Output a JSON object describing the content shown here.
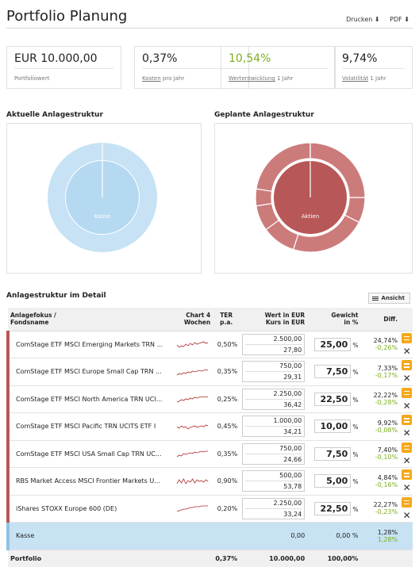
{
  "header": {
    "title": "Portfolio Planung",
    "print_label": "Drucken",
    "pdf_label": "PDF"
  },
  "kpis": [
    {
      "value": "EUR 10.000,00",
      "label": "Portfoliowert",
      "label_link": "",
      "label_rest": ""
    },
    {
      "value": "0,37%",
      "label": "",
      "label_link": "Kosten",
      "label_rest": " pro Jahr"
    },
    {
      "value": "10,54%",
      "label": "",
      "label_link": "Wertentwicklung",
      "label_rest": " 1 Jahr",
      "color": "#7cae1f"
    },
    {
      "value": "9,74%",
      "label": "",
      "label_link": "Volatilität",
      "label_rest": " 1 Jahr"
    }
  ],
  "structure": {
    "current_title": "Aktuelle Anlagestruktur",
    "planned_title": "Geplante Anlagestruktur",
    "current_label": "Kasse",
    "planned_label": "Aktien"
  },
  "detail": {
    "title": "Anlagestruktur im Detail",
    "view_button": "Ansicht",
    "columns": {
      "focus": "Anlagefokus /",
      "name": "Fondsname",
      "chart1": "Chart 4",
      "chart2": "Wochen",
      "ter1": "TER",
      "ter2": "p.a.",
      "wert1": "Wert in EUR",
      "wert2": "Kurs in EUR",
      "gewicht1": "Gewicht",
      "gewicht2": "in %",
      "diff": "Diff."
    },
    "rows": [
      {
        "name": "ComStage ETF MSCI Emerging Markets TRN ...",
        "ter": "0,50%",
        "wert": "2.500,00",
        "kurs": "27,80",
        "gewicht": "25,00",
        "diff1": "24,74%",
        "diff2": "-0,26%"
      },
      {
        "name": "ComStage ETF MSCI Europe Small Cap TRN ...",
        "ter": "0,35%",
        "wert": "750,00",
        "kurs": "29,31",
        "gewicht": "7,50",
        "diff1": "7,33%",
        "diff2": "-0,17%"
      },
      {
        "name": "ComStage ETF MSCI North America TRN UCI...",
        "ter": "0,25%",
        "wert": "2.250,00",
        "kurs": "36,42",
        "gewicht": "22,50",
        "diff1": "22,22%",
        "diff2": "-0,28%"
      },
      {
        "name": "ComStage ETF MSCI Pacific TRN UCITS ETF I",
        "ter": "0,45%",
        "wert": "1.000,00",
        "kurs": "34,21",
        "gewicht": "10,00",
        "diff1": "9,92%",
        "diff2": "-0,08%"
      },
      {
        "name": "ComStage ETF MSCI USA Small Cap TRN UC...",
        "ter": "0,35%",
        "wert": "750,00",
        "kurs": "24,66",
        "gewicht": "7,50",
        "diff1": "7,40%",
        "diff2": "-0,10%"
      },
      {
        "name": "RBS Market Access MSCI Frontier Markets U...",
        "ter": "0,90%",
        "wert": "500,00",
        "kurs": "53,78",
        "gewicht": "5,00",
        "diff1": "4,84%",
        "diff2": "-0,16%"
      },
      {
        "name": "iShares STOXX Europe 600 (DE)",
        "ter": "0,20%",
        "wert": "2.250,00",
        "kurs": "33,24",
        "gewicht": "22,50",
        "diff1": "22,27%",
        "diff2": "-0,23%"
      }
    ],
    "cash": {
      "name": "Kasse",
      "wert": "0,00",
      "gewicht": "0,00 %",
      "diff1": "1,28%",
      "diff2": "1,28%"
    },
    "footer": {
      "label": "Portfolio",
      "ter": "0,37%",
      "wert": "10.000,00",
      "gewicht": "100,00%"
    },
    "pct_sign": "%"
  },
  "colors": {
    "positive": "#7cae1f",
    "fund_bar": "#b85757",
    "cash_bg": "#c7e2f3",
    "action": "#f5a81a"
  }
}
